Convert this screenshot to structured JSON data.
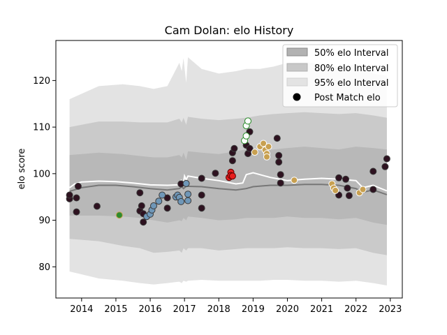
{
  "chart_data": {
    "type": "scatter",
    "title": "Cam Dolan: elo History",
    "xlabel": "",
    "ylabel": "elo score",
    "xlim": [
      2013.25,
      2023.35
    ],
    "ylim": [
      73.3,
      128.6
    ],
    "x_ticks": [
      2014,
      2015,
      2016,
      2017,
      2018,
      2019,
      2020,
      2021,
      2022,
      2023
    ],
    "x_tick_labels": [
      "2014",
      "2015",
      "2016",
      "2017",
      "2018",
      "2019",
      "2020",
      "2021",
      "2022",
      "2023"
    ],
    "y_ticks": [
      80,
      90,
      100,
      110,
      120
    ],
    "y_tick_labels": [
      "80",
      "90",
      "100",
      "110",
      "120"
    ],
    "grid": false,
    "legend_position": "top-right",
    "legend": [
      {
        "label": "50% elo Interval",
        "kind": "band",
        "color": "#8a8a8a"
      },
      {
        "label": "80% elo Interval",
        "kind": "band",
        "color": "#b0b0b0"
      },
      {
        "label": "95% elo Interval",
        "kind": "band",
        "color": "#dcdcdc"
      },
      {
        "label": "Post Match elo",
        "kind": "marker",
        "color": "#000000"
      }
    ],
    "bands": {
      "x": [
        2013.65,
        2014.5,
        2015.2,
        2015.7,
        2016.1,
        2016.5,
        2016.85,
        2016.92,
        2016.97,
        2017.05,
        2017.1,
        2017.5,
        2018.0,
        2018.5,
        2018.8,
        2019.2,
        2019.6,
        2020.0,
        2020.5,
        2021.0,
        2021.5,
        2022.0,
        2022.5,
        2022.9
      ],
      "p95_upper": [
        116.0,
        118.8,
        119.2,
        118.8,
        118.2,
        118.8,
        123.8,
        122.0,
        124.8,
        119.5,
        125.0,
        122.5,
        121.5,
        122.0,
        122.5,
        122.5,
        123.0,
        123.8,
        124.0,
        123.5,
        123.0,
        123.5,
        121.5,
        121.0
      ],
      "p80_upper": [
        110.0,
        111.2,
        111.2,
        111.0,
        111.0,
        111.0,
        111.8,
        111.0,
        112.0,
        110.5,
        112.2,
        111.8,
        111.5,
        111.8,
        112.0,
        112.5,
        112.8,
        113.0,
        113.2,
        113.0,
        112.8,
        113.0,
        112.5,
        112.0
      ],
      "p50_upper": [
        104.0,
        104.5,
        104.2,
        103.8,
        103.5,
        103.5,
        104.0,
        103.5,
        104.5,
        103.0,
        104.8,
        104.5,
        104.2,
        104.8,
        105.2,
        105.0,
        105.2,
        105.5,
        105.8,
        105.5,
        105.2,
        105.8,
        105.5,
        105.2
      ],
      "p50_lower": [
        91.0,
        91.0,
        90.8,
        90.5,
        90.0,
        89.5,
        90.0,
        89.8,
        90.5,
        90.0,
        90.8,
        90.5,
        90.0,
        90.2,
        90.5,
        90.5,
        90.5,
        90.8,
        90.5,
        90.5,
        90.2,
        90.5,
        89.5,
        89.0
      ],
      "p80_lower": [
        86.0,
        85.5,
        84.5,
        84.0,
        83.0,
        83.2,
        83.5,
        83.0,
        84.0,
        83.5,
        84.0,
        84.0,
        83.5,
        83.8,
        84.0,
        84.0,
        84.0,
        84.2,
        84.0,
        84.0,
        83.8,
        84.0,
        83.0,
        82.5
      ],
      "p95_lower": [
        79.0,
        77.5,
        77.0,
        76.5,
        76.2,
        76.5,
        76.8,
        76.5,
        77.0,
        76.8,
        77.0,
        77.2,
        77.0,
        77.0,
        77.0,
        77.0,
        77.2,
        77.2,
        77.0,
        77.0,
        76.8,
        77.0,
        76.5,
        76.0
      ]
    },
    "median_line": {
      "color": "#777777",
      "x": [
        2013.65,
        2014.0,
        2014.5,
        2015.0,
        2015.5,
        2016.0,
        2016.5,
        2016.85,
        2016.92,
        2016.97,
        2017.05,
        2017.5,
        2018.0,
        2018.5,
        2018.8,
        2019.0,
        2019.5,
        2020.0,
        2020.5,
        2021.0,
        2021.5,
        2022.0,
        2022.2,
        2022.5,
        2022.9
      ],
      "y": [
        96.2,
        97.0,
        97.5,
        97.5,
        97.2,
        96.8,
        96.5,
        96.8,
        97.2,
        96.8,
        97.3,
        97.2,
        96.8,
        96.5,
        96.8,
        97.2,
        97.5,
        97.5,
        97.7,
        97.7,
        97.5,
        96.8,
        96.0,
        96.5,
        95.5
      ]
    },
    "mean_line": {
      "color": "#ffffff",
      "x": [
        2013.65,
        2013.8,
        2014.0,
        2014.5,
        2015.0,
        2015.5,
        2016.0,
        2016.5,
        2016.8,
        2016.9,
        2016.95,
        2017.0,
        2017.05,
        2017.1,
        2017.5,
        2018.0,
        2018.5,
        2018.7,
        2018.8,
        2019.0,
        2019.5,
        2020.0,
        2020.5,
        2021.0,
        2021.5,
        2022.0,
        2022.2,
        2022.5,
        2022.9
      ],
      "y": [
        97.0,
        97.8,
        98.2,
        98.4,
        98.3,
        98.0,
        97.6,
        97.5,
        97.6,
        98.5,
        97.2,
        99.5,
        98.7,
        99.5,
        99.0,
        98.5,
        97.8,
        98.0,
        99.8,
        100.2,
        99.2,
        98.5,
        98.8,
        99.0,
        98.8,
        98.5,
        97.0,
        97.5,
        96.3
      ]
    },
    "series": [
      {
        "color": "#2e1220",
        "edge": "#3a3a3a",
        "points": [
          [
            2013.65,
            94.6
          ],
          [
            2013.65,
            95.4
          ],
          [
            2013.85,
            94.8
          ],
          [
            2013.85,
            91.8
          ],
          [
            2013.9,
            97.3
          ],
          [
            2014.45,
            93.0
          ],
          [
            2015.7,
            95.9
          ],
          [
            2015.7,
            92.0
          ],
          [
            2015.75,
            93.1
          ],
          [
            2015.8,
            91.4
          ],
          [
            2015.8,
            89.6
          ],
          [
            2016.5,
            92.6
          ],
          [
            2016.5,
            94.8
          ],
          [
            2016.9,
            97.8
          ],
          [
            2017.5,
            99.0
          ],
          [
            2017.5,
            95.4
          ],
          [
            2017.5,
            92.6
          ],
          [
            2017.9,
            100.1
          ],
          [
            2018.4,
            102.8
          ],
          [
            2018.4,
            104.5
          ],
          [
            2018.45,
            105.4
          ],
          [
            2018.8,
            106.1
          ],
          [
            2018.85,
            104.3
          ],
          [
            2018.9,
            105.4
          ],
          [
            2018.9,
            109.0
          ],
          [
            2019.7,
            107.6
          ],
          [
            2019.75,
            103.9
          ],
          [
            2019.75,
            102.5
          ],
          [
            2019.8,
            99.8
          ],
          [
            2019.8,
            98.0
          ],
          [
            2021.5,
            99.1
          ],
          [
            2021.5,
            95.4
          ],
          [
            2021.7,
            98.8
          ],
          [
            2021.75,
            96.9
          ],
          [
            2021.8,
            95.3
          ],
          [
            2022.5,
            100.5
          ],
          [
            2022.5,
            96.6
          ],
          [
            2022.85,
            101.5
          ],
          [
            2022.9,
            103.2
          ]
        ]
      },
      {
        "color": "#6f97b8",
        "edge": "#3a3a3a",
        "points": [
          [
            2015.9,
            90.8
          ],
          [
            2016.0,
            91.3
          ],
          [
            2016.05,
            92.2
          ],
          [
            2016.1,
            93.1
          ],
          [
            2016.25,
            94.1
          ],
          [
            2016.35,
            95.4
          ],
          [
            2016.75,
            95.0
          ],
          [
            2016.8,
            95.4
          ],
          [
            2016.85,
            94.9
          ],
          [
            2016.9,
            94.0
          ],
          [
            2017.05,
            97.9
          ],
          [
            2017.1,
            95.6
          ],
          [
            2017.1,
            94.2
          ]
        ]
      },
      {
        "color": "#e81f1f",
        "edge": "#5a0000",
        "points": [
          [
            2018.3,
            99.2
          ],
          [
            2018.35,
            100.3
          ],
          [
            2018.35,
            99.6
          ],
          [
            2018.4,
            99.5
          ]
        ]
      },
      {
        "color": "#ffffff",
        "edge": "#228822",
        "points": [
          [
            2018.75,
            107.1
          ],
          [
            2018.8,
            108.1
          ],
          [
            2018.8,
            110.3
          ],
          [
            2018.85,
            111.3
          ]
        ]
      },
      {
        "color": "#c8a050",
        "edge": "#ffffff",
        "points": [
          [
            2019.05,
            104.6
          ],
          [
            2019.2,
            105.8
          ],
          [
            2019.3,
            106.5
          ],
          [
            2019.35,
            105.1
          ],
          [
            2019.4,
            104.3
          ],
          [
            2019.4,
            103.6
          ],
          [
            2019.45,
            105.8
          ],
          [
            2020.2,
            98.6
          ],
          [
            2021.3,
            97.8
          ],
          [
            2021.35,
            96.9
          ],
          [
            2021.4,
            96.4
          ],
          [
            2022.1,
            95.9
          ],
          [
            2022.2,
            96.6
          ]
        ]
      },
      {
        "color": "#2e8b2e",
        "edge": "#c8a050",
        "points": [
          [
            2015.1,
            91.1
          ]
        ]
      }
    ]
  }
}
